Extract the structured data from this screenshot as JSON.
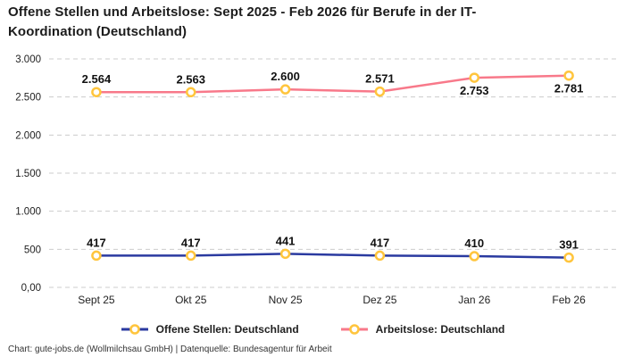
{
  "title": "Offene Stellen und Arbeitslose: Sept 2025 - Feb 2026 für Berufe in der IT-Koordination (Deutschland)",
  "footer": "Chart: gute-jobs.de (Wollmilchsau GmbH) | Datenquelle: Bundesagentur für Arbeit",
  "colors": {
    "open_positions_line": "#2A3AA0",
    "unemployed_line": "#F8798A",
    "marker_ring": "#FFC53D",
    "marker_fill": "#FFFFFF",
    "gridline": "#CCCCCC",
    "tick_text": "#222222",
    "data_label_text": "#111111"
  },
  "chart_data": {
    "type": "line",
    "title": "Offene Stellen und Arbeitslose: Sept 2025 - Feb 2026 für Berufe in der IT-Koordination (Deutschland)",
    "categories": [
      "Sept 25",
      "Okt 25",
      "Nov 25",
      "Dez 25",
      "Jan 26",
      "Feb 26"
    ],
    "series": [
      {
        "name": "Offene Stellen: Deutschland",
        "values": [
          417,
          417,
          441,
          417,
          410,
          391
        ],
        "labels": [
          "417",
          "417",
          "441",
          "417",
          "410",
          "391"
        ],
        "color": "#2A3AA0",
        "label_positions": [
          "above",
          "above",
          "above",
          "above",
          "above",
          "above"
        ]
      },
      {
        "name": "Arbeitslose: Deutschland",
        "values": [
          2564,
          2563,
          2600,
          2571,
          2753,
          2781
        ],
        "labels": [
          "2.564",
          "2.563",
          "2.600",
          "2.571",
          "2.753",
          "2.781"
        ],
        "color": "#F8798A",
        "label_positions": [
          "above",
          "above",
          "above",
          "above",
          "below",
          "below"
        ]
      }
    ],
    "xlabel": "",
    "ylabel": "",
    "ylim": [
      0,
      3000
    ],
    "yticks": [
      {
        "value": 0,
        "label": "0,00"
      },
      {
        "value": 500,
        "label": "500"
      },
      {
        "value": 1000,
        "label": "1.000"
      },
      {
        "value": 1500,
        "label": "1.500"
      },
      {
        "value": 2000,
        "label": "2.000"
      },
      {
        "value": 2500,
        "label": "2.500"
      },
      {
        "value": 3000,
        "label": "3.000"
      }
    ],
    "grid": true,
    "gridline_style": "dashed",
    "legend_position": "bottom",
    "marker": {
      "fill": "#FFFFFF",
      "stroke": "#FFC53D"
    }
  }
}
